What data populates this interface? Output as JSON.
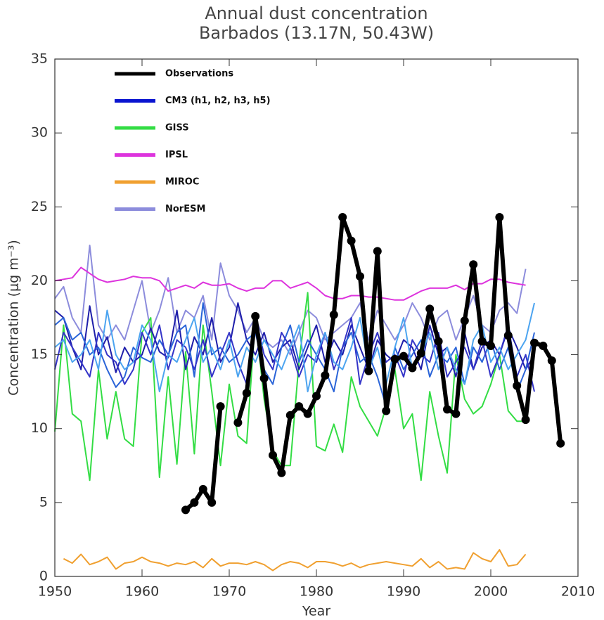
{
  "chart_data": {
    "type": "line",
    "title": "Annual dust concentration",
    "subtitle": "Barbados  (13.17N, 50.43W)",
    "x_label": "Year",
    "y_label": "Concentration (μg m⁻³)",
    "legend": "upper left",
    "xlim": [
      1950,
      2010
    ],
    "xticks": [
      1950,
      1960,
      1970,
      1980,
      1990,
      2000,
      2010
    ],
    "ylim": [
      0,
      35
    ],
    "yticks": [
      0,
      5,
      10,
      15,
      20,
      25,
      30,
      35
    ],
    "x": [
      1950,
      1951,
      1952,
      1953,
      1954,
      1955,
      1956,
      1957,
      1958,
      1959,
      1960,
      1961,
      1962,
      1963,
      1964,
      1965,
      1966,
      1967,
      1968,
      1969,
      1970,
      1971,
      1972,
      1973,
      1974,
      1975,
      1976,
      1977,
      1978,
      1979,
      1980,
      1981,
      1982,
      1983,
      1984,
      1985,
      1986,
      1987,
      1988,
      1989,
      1990,
      1991,
      1992,
      1993,
      1994,
      1995,
      1996,
      1997,
      1998,
      1999,
      2000,
      2001,
      2002,
      2003,
      2004,
      2005,
      2006,
      2007,
      2008
    ],
    "series": [
      {
        "name": "Observations",
        "color": "#000000",
        "markers": true,
        "values": [
          null,
          null,
          null,
          null,
          null,
          null,
          null,
          null,
          null,
          null,
          null,
          null,
          null,
          null,
          null,
          4.5,
          5.0,
          5.9,
          5.0,
          11.5,
          null,
          10.4,
          12.4,
          17.6,
          13.4,
          8.2,
          7.0,
          10.9,
          11.5,
          11.0,
          12.2,
          13.6,
          17.7,
          24.3,
          22.7,
          20.3,
          13.9,
          22.0,
          11.2,
          14.7,
          14.9,
          14.1,
          15.1,
          18.1,
          15.9,
          11.3,
          11.0,
          17.3,
          21.1,
          15.9,
          15.6,
          24.3,
          16.3,
          12.9,
          10.6,
          15.8,
          15.6,
          14.6,
          9.0
        ]
      },
      {
        "name": "CM3 (h1, h2, h3, h5)",
        "color": "#0a14d0",
        "member_colors": [
          "#1e1eaa",
          "#2a64d8",
          "#3434c8",
          "#4ca4f0"
        ],
        "values": [
          [
            18.0,
            17.5,
            15.5,
            14.0,
            18.3,
            15.0,
            16.2,
            13.8,
            15.5,
            14.5,
            15.0,
            16.8,
            15.2,
            14.8,
            18.0,
            14.0,
            16.2,
            15.0,
            17.5,
            14.5,
            15.5,
            18.5,
            16.0,
            15.0,
            16.5,
            14.5,
            15.5,
            16.0,
            14.0,
            15.5,
            17.0,
            14.5,
            16.0,
            15.0,
            17.0,
            15.5,
            14.0,
            16.0,
            15.0,
            14.5,
            16.0,
            15.5,
            14.0,
            17.0,
            15.0,
            15.5,
            13.5,
            16.5,
            14.0,
            15.5,
            16.0,
            15.0,
            16.8,
            15.5,
            14.0,
            15.0,
            null,
            null,
            null
          ],
          [
            17.0,
            17.5,
            16.0,
            16.5,
            15.0,
            15.5,
            14.0,
            12.8,
            13.5,
            15.5,
            14.8,
            14.5,
            16.0,
            15.0,
            16.5,
            17.0,
            13.5,
            18.5,
            15.0,
            15.5,
            14.5,
            15.0,
            16.0,
            16.5,
            14.0,
            13.0,
            15.5,
            17.0,
            14.5,
            16.0,
            15.0,
            14.0,
            12.5,
            15.5,
            16.5,
            14.5,
            15.0,
            13.5,
            11.5,
            15.5,
            14.0,
            15.0,
            16.0,
            13.5,
            15.0,
            14.5,
            15.5,
            13.0,
            15.5,
            14.5,
            16.0,
            14.0,
            15.5,
            12.5,
            14.0,
            16.5,
            null,
            null,
            null
          ],
          [
            14.0,
            16.5,
            15.5,
            14.5,
            13.5,
            16.5,
            15.0,
            14.5,
            13.0,
            14.0,
            16.5,
            15.0,
            17.0,
            14.0,
            16.0,
            15.5,
            14.0,
            16.0,
            13.5,
            15.0,
            16.5,
            14.5,
            13.0,
            17.5,
            15.0,
            14.0,
            16.5,
            15.5,
            13.5,
            15.0,
            14.5,
            16.5,
            14.0,
            15.5,
            17.5,
            13.0,
            15.0,
            16.5,
            14.5,
            15.0,
            13.5,
            16.0,
            15.0,
            14.5,
            16.5,
            13.5,
            14.5,
            15.5,
            14.0,
            16.0,
            13.5,
            15.0,
            17.0,
            13.5,
            15.0,
            12.5,
            null,
            null,
            null
          ],
          [
            15.5,
            16.0,
            14.5,
            15.0,
            16.0,
            14.0,
            18.0,
            15.0,
            14.0,
            14.5,
            17.0,
            16.0,
            12.5,
            15.0,
            14.5,
            16.0,
            17.5,
            14.5,
            15.5,
            14.0,
            16.0,
            13.5,
            15.5,
            14.5,
            16.0,
            15.0,
            14.0,
            15.5,
            17.0,
            12.5,
            15.0,
            16.5,
            14.5,
            14.0,
            15.5,
            17.5,
            14.0,
            15.5,
            13.0,
            15.5,
            17.5,
            14.0,
            15.0,
            16.5,
            14.0,
            15.5,
            14.0,
            13.0,
            16.0,
            17.0,
            14.5,
            15.5,
            14.0,
            15.0,
            16.0,
            18.5,
            null,
            null,
            null
          ]
        ]
      },
      {
        "name": "GISS",
        "color": "#33dd44",
        "values": [
          9.8,
          17.0,
          11.0,
          10.5,
          6.5,
          14.0,
          9.3,
          12.5,
          9.3,
          8.8,
          16.5,
          17.5,
          6.7,
          13.5,
          7.6,
          15.2,
          8.3,
          17.0,
          12.5,
          7.5,
          13.0,
          9.5,
          9.0,
          17.5,
          12.0,
          8.5,
          7.5,
          7.5,
          14.5,
          19.2,
          8.8,
          8.5,
          10.3,
          8.4,
          13.5,
          11.5,
          10.5,
          9.5,
          11.5,
          14.0,
          10.0,
          11.0,
          6.5,
          12.5,
          9.5,
          7.0,
          15.0,
          12.0,
          11.0,
          11.5,
          13.0,
          15.0,
          11.2,
          10.5,
          10.5,
          15.3,
          null,
          null,
          null
        ]
      },
      {
        "name": "IPSL",
        "color": "#dd33dd",
        "values": [
          20.0,
          20.1,
          20.2,
          20.9,
          20.5,
          20.1,
          19.9,
          20.0,
          20.1,
          20.3,
          20.2,
          20.2,
          20.0,
          19.3,
          19.5,
          19.7,
          19.5,
          19.9,
          19.7,
          19.7,
          19.8,
          19.5,
          19.3,
          19.5,
          19.5,
          20.0,
          20.0,
          19.5,
          19.7,
          19.9,
          19.5,
          19.0,
          18.8,
          18.8,
          19.0,
          19.0,
          18.9,
          18.9,
          18.8,
          18.7,
          18.7,
          19.0,
          19.3,
          19.5,
          19.5,
          19.5,
          19.7,
          19.4,
          19.8,
          19.8,
          20.1,
          20.1,
          19.9,
          19.8,
          19.7,
          null,
          null,
          null,
          null
        ]
      },
      {
        "name": "MIROC",
        "color": "#f0a030",
        "values": [
          null,
          1.2,
          0.9,
          1.5,
          0.8,
          1.0,
          1.3,
          0.5,
          0.9,
          1.0,
          1.3,
          1.0,
          0.9,
          0.7,
          0.9,
          0.8,
          1.0,
          0.6,
          1.2,
          0.7,
          0.9,
          0.9,
          0.8,
          1.0,
          0.8,
          0.4,
          0.8,
          1.0,
          0.9,
          0.6,
          1.0,
          1.0,
          0.9,
          0.7,
          0.9,
          0.6,
          0.8,
          0.9,
          1.0,
          0.9,
          0.8,
          0.7,
          1.2,
          0.6,
          1.0,
          0.5,
          0.6,
          0.5,
          1.6,
          1.2,
          1.0,
          1.8,
          0.7,
          0.8,
          1.5,
          null,
          null,
          null,
          null
        ]
      },
      {
        "name": "NorESM",
        "color": "#8c8cdc",
        "values": [
          18.8,
          19.6,
          17.5,
          16.5,
          22.4,
          17.0,
          16.0,
          17.0,
          16.0,
          18.0,
          20.0,
          16.5,
          18.0,
          20.2,
          16.5,
          18.0,
          17.5,
          19.0,
          16.0,
          21.2,
          19.0,
          18.0,
          16.5,
          17.5,
          16.0,
          15.5,
          16.0,
          15.0,
          16.5,
          18.0,
          17.5,
          16.0,
          16.5,
          17.0,
          17.5,
          18.5,
          16.0,
          18.0,
          17.0,
          16.0,
          17.0,
          18.5,
          17.5,
          16.0,
          17.5,
          18.0,
          16.0,
          17.5,
          19.0,
          17.0,
          16.5,
          18.0,
          18.5,
          17.8,
          20.8,
          null,
          null,
          null,
          null
        ]
      }
    ]
  }
}
